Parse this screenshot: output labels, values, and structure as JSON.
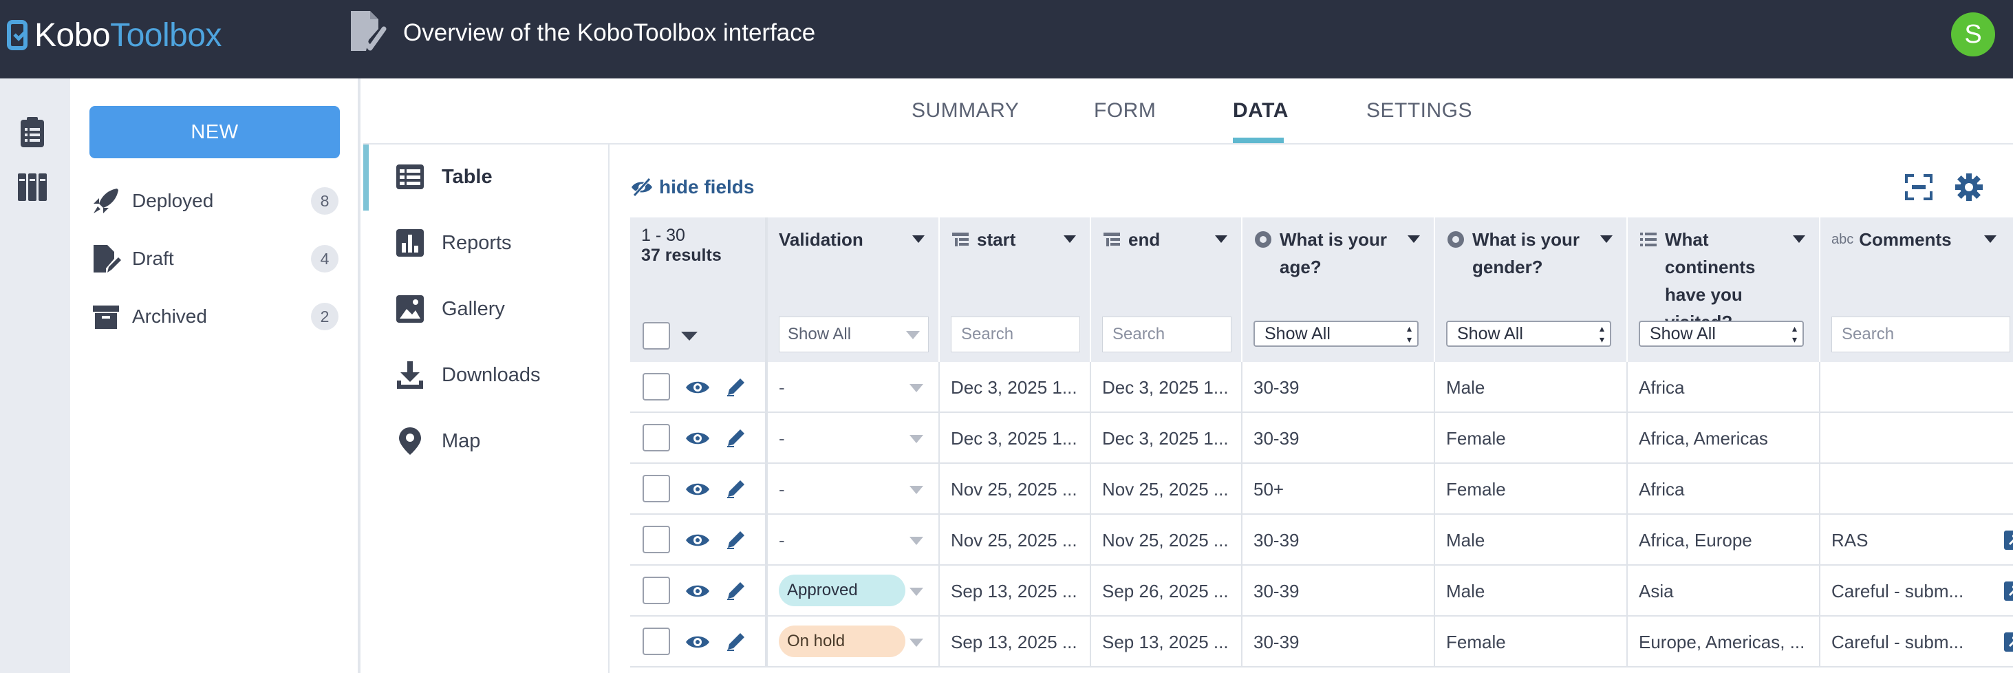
{
  "header": {
    "logo_part1": "Kobo",
    "logo_part2": "Toolbox",
    "title": "Overview of the KoboToolbox interface",
    "avatar_letter": "S",
    "avatar_color": "#5bc236"
  },
  "rail": {
    "icons": [
      "projects-icon",
      "library-icon"
    ]
  },
  "sidebar": {
    "new_label": "NEW",
    "items": [
      {
        "label": "Deployed",
        "count": "8",
        "icon": "rocket-icon"
      },
      {
        "label": "Draft",
        "count": "4",
        "icon": "draft-icon"
      },
      {
        "label": "Archived",
        "count": "2",
        "icon": "archive-icon"
      }
    ]
  },
  "tabs": [
    {
      "label": "SUMMARY"
    },
    {
      "label": "FORM"
    },
    {
      "label": "DATA",
      "active": true
    },
    {
      "label": "SETTINGS"
    }
  ],
  "subnav": [
    {
      "label": "Table",
      "icon": "table-icon",
      "active": true
    },
    {
      "label": "Reports",
      "icon": "reports-icon"
    },
    {
      "label": "Gallery",
      "icon": "gallery-icon"
    },
    {
      "label": "Downloads",
      "icon": "download-icon"
    },
    {
      "label": "Map",
      "icon": "map-pin-icon"
    }
  ],
  "toolbar": {
    "hide_fields": "hide fields"
  },
  "table": {
    "range": "1 - 30",
    "results": "37 results",
    "columns": {
      "validation": {
        "title": "Validation",
        "filter": "Show All"
      },
      "start": {
        "title": "start",
        "filter_placeholder": "Search"
      },
      "end": {
        "title": "end",
        "filter_placeholder": "Search"
      },
      "age": {
        "title": "What is your age?",
        "filter": "Show All"
      },
      "gender": {
        "title": "What is your gender?",
        "filter": "Show All"
      },
      "continents": {
        "title": "What continents have you visited?...",
        "filter": "Show All"
      },
      "comments": {
        "title": "Comments",
        "type_label": "abc",
        "filter_placeholder": "Search"
      }
    },
    "rows": [
      {
        "validation": "-",
        "start": "Dec 3, 2025 1...",
        "end": "Dec 3, 2025 1...",
        "age": "30-39",
        "gender": "Male",
        "continents": "Africa",
        "comments": ""
      },
      {
        "validation": "-",
        "start": "Dec 3, 2025 1...",
        "end": "Dec 3, 2025 1...",
        "age": "30-39",
        "gender": "Female",
        "continents": "Africa, Americas",
        "comments": ""
      },
      {
        "validation": "-",
        "start": "Nov 25, 2025 ...",
        "end": "Nov 25, 2025 ...",
        "age": "50+",
        "gender": "Female",
        "continents": "Africa",
        "comments": ""
      },
      {
        "validation": "-",
        "start": "Nov 25, 2025 ...",
        "end": "Nov 25, 2025 ...",
        "age": "30-39",
        "gender": "Male",
        "continents": "Africa, Europe",
        "comments": "RAS"
      },
      {
        "validation": "Approved",
        "start": "Sep 13, 2025 ...",
        "end": "Sep 26, 2025 ...",
        "age": "30-39",
        "gender": "Male",
        "continents": "Asia",
        "comments": "Careful - subm..."
      },
      {
        "validation": "On hold",
        "start": "Sep 13, 2025 ...",
        "end": "Sep 13, 2025 ...",
        "age": "30-39",
        "gender": "Female",
        "continents": "Europe, Americas, ...",
        "comments": "Careful - subm..."
      }
    ]
  },
  "colors": {
    "header_bg": "#2b3141",
    "accent_blue": "#4b9bea",
    "link_blue": "#2e5c8f",
    "active_tab_underline": "#5fb8cf",
    "approved_bg": "#c8ecef",
    "on_hold_bg": "#fbe0c8"
  }
}
